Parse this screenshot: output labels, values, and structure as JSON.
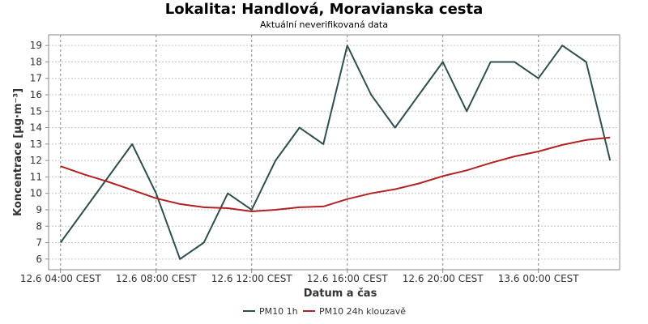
{
  "chart_data": {
    "type": "line",
    "title": "Lokalita: Handlová, Moravianska cesta",
    "subtitle": "Aktuální neverifikovaná data",
    "xlabel": "Datum a čas",
    "ylabel": "Koncentrace [µg·m⁻³]",
    "x_ticks": [
      "12.6 04:00 CEST",
      "12.6 08:00 CEST",
      "12.6 12:00 CEST",
      "12.6 16:00 CEST",
      "12.6 20:00 CEST",
      "13.6 00:00 CEST"
    ],
    "x_tick_hours": [
      4,
      8,
      12,
      16,
      20,
      24
    ],
    "y_ticks": [
      6,
      7,
      8,
      9,
      10,
      11,
      12,
      13,
      14,
      15,
      16,
      17,
      18,
      19
    ],
    "xlim": [
      3.5,
      27.4
    ],
    "ylim": [
      5.35,
      19.65
    ],
    "grid": true,
    "legend_position": "bottom",
    "series": [
      {
        "name": "PM10 1h",
        "color": "#2f4f4f",
        "x": [
          4,
          5,
          6,
          7,
          8,
          9,
          10,
          11,
          12,
          13,
          14,
          15,
          16,
          17,
          18,
          19,
          20,
          21,
          22,
          23,
          24,
          25,
          26,
          27
        ],
        "values": [
          7,
          9,
          11,
          13,
          10,
          6,
          7,
          10,
          9,
          12,
          14,
          13,
          19,
          16,
          14,
          16,
          18,
          15,
          18,
          18,
          17,
          19,
          18,
          12
        ]
      },
      {
        "name": "PM10 24h klouzavě",
        "color": "#b22222",
        "x": [
          4,
          5,
          6,
          7,
          8,
          9,
          10,
          11,
          12,
          13,
          14,
          15,
          16,
          17,
          18,
          19,
          20,
          21,
          22,
          23,
          24,
          25,
          26,
          27
        ],
        "values": [
          11.65,
          11.15,
          10.7,
          10.2,
          9.7,
          9.35,
          9.15,
          9.1,
          8.9,
          9.0,
          9.15,
          9.2,
          9.65,
          10.0,
          10.25,
          10.6,
          11.05,
          11.4,
          11.85,
          12.25,
          12.55,
          12.95,
          13.25,
          13.4
        ]
      }
    ]
  }
}
